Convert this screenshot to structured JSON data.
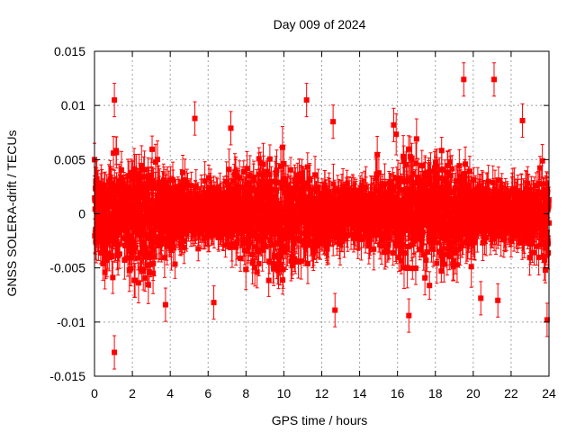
{
  "chart_data": {
    "type": "scatter",
    "title": "Day 009 of 2024",
    "xlabel": "GPS time / hours",
    "ylabel": "GNSS SOLERA-drift / TECUs",
    "xlim": [
      0,
      24
    ],
    "ylim": [
      -0.015,
      0.015
    ],
    "x_ticks": [
      "0",
      "2",
      "4",
      "6",
      "8",
      "10",
      "12",
      "14",
      "16",
      "18",
      "20",
      "22",
      "24"
    ],
    "y_ticks": [
      "-0.015",
      "-0.01",
      "-0.005",
      "0",
      "0.005",
      "0.01",
      "0.015"
    ],
    "grid": true,
    "error_bars": true,
    "marker": "square",
    "colors": {
      "series": "#ff0000",
      "grid": "#a0a0a0",
      "frame": "#000000"
    },
    "data_summary": {
      "approx_points": 2880,
      "sampling_interval_hours": 0.00833,
      "mean": 0.0,
      "band_std": 0.002,
      "typical_error": 0.0014
    },
    "outliers": [
      {
        "x": 1.05,
        "y": 0.0105
      },
      {
        "x": 1.05,
        "y": -0.0128
      },
      {
        "x": 1.0,
        "y": 0.0056
      },
      {
        "x": 0.45,
        "y": -0.0046
      },
      {
        "x": 0.55,
        "y": -0.0054
      },
      {
        "x": 3.75,
        "y": -0.0084
      },
      {
        "x": 5.3,
        "y": 0.0088
      },
      {
        "x": 6.3,
        "y": -0.0082
      },
      {
        "x": 7.2,
        "y": 0.0079
      },
      {
        "x": 11.2,
        "y": 0.0105
      },
      {
        "x": 12.6,
        "y": 0.0085
      },
      {
        "x": 12.7,
        "y": -0.0089
      },
      {
        "x": 15.8,
        "y": 0.0082
      },
      {
        "x": 16.6,
        "y": -0.0094
      },
      {
        "x": 19.5,
        "y": 0.0124
      },
      {
        "x": 20.4,
        "y": -0.0078
      },
      {
        "x": 21.1,
        "y": 0.0124
      },
      {
        "x": 21.3,
        "y": -0.008
      },
      {
        "x": 22.6,
        "y": 0.0086
      },
      {
        "x": 23.9,
        "y": -0.0098
      }
    ]
  }
}
